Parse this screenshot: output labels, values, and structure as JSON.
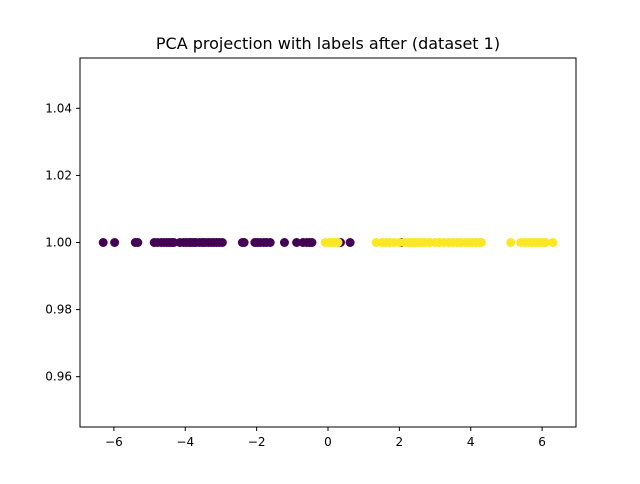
{
  "chart_data": {
    "type": "scatter",
    "title": "PCA projection with labels after (dataset 1)",
    "xlabel": "",
    "ylabel": "",
    "xlim": [
      -6.95,
      6.95
    ],
    "ylim": [
      0.945,
      1.055
    ],
    "xticks": [
      -6,
      -4,
      -2,
      0,
      2,
      4,
      6
    ],
    "xtick_labels": [
      "−6",
      "−4",
      "−2",
      "0",
      "2",
      "4",
      "6"
    ],
    "yticks": [
      0.96,
      0.98,
      1.0,
      1.02,
      1.04
    ],
    "ytick_labels": [
      "0.96",
      "0.98",
      "1.00",
      "1.02",
      "1.04"
    ],
    "grid": false,
    "colors": {
      "class_0": "#440154",
      "class_1": "#fde725"
    },
    "series": [
      {
        "color_key": "class_0",
        "y": 1.0,
        "x": [
          -6.3,
          -5.98,
          -5.4,
          -5.33,
          -4.87,
          -4.78,
          -4.68,
          -4.6,
          -4.52,
          -4.45,
          -4.38,
          -4.32,
          -4.15,
          -4.05,
          -3.98,
          -3.9,
          -3.84,
          -3.77,
          -3.7,
          -3.6,
          -3.52,
          -3.45,
          -3.36,
          -3.28,
          -3.2,
          -3.12,
          -3.04,
          -2.96,
          -2.4,
          -2.35,
          -2.05,
          -1.98,
          -1.9,
          -1.8,
          -1.72,
          -1.62,
          -1.22,
          -0.88,
          -0.7,
          -0.6,
          -0.52,
          -0.45,
          0.35,
          0.62,
          2.05
        ]
      },
      {
        "color_key": "class_1",
        "y": 1.0,
        "x": [
          -0.08,
          0.05,
          0.12,
          0.2,
          0.28,
          1.35,
          1.52,
          1.62,
          1.72,
          1.85,
          2.0,
          2.15,
          2.22,
          2.3,
          2.38,
          2.45,
          2.52,
          2.62,
          2.72,
          2.85,
          3.0,
          3.12,
          3.25,
          3.38,
          3.5,
          3.62,
          3.72,
          3.85,
          3.95,
          4.05,
          4.15,
          4.25,
          4.3,
          5.12,
          5.4,
          5.52,
          5.62,
          5.72,
          5.82,
          5.92,
          6.02,
          6.1,
          6.3
        ]
      }
    ]
  }
}
